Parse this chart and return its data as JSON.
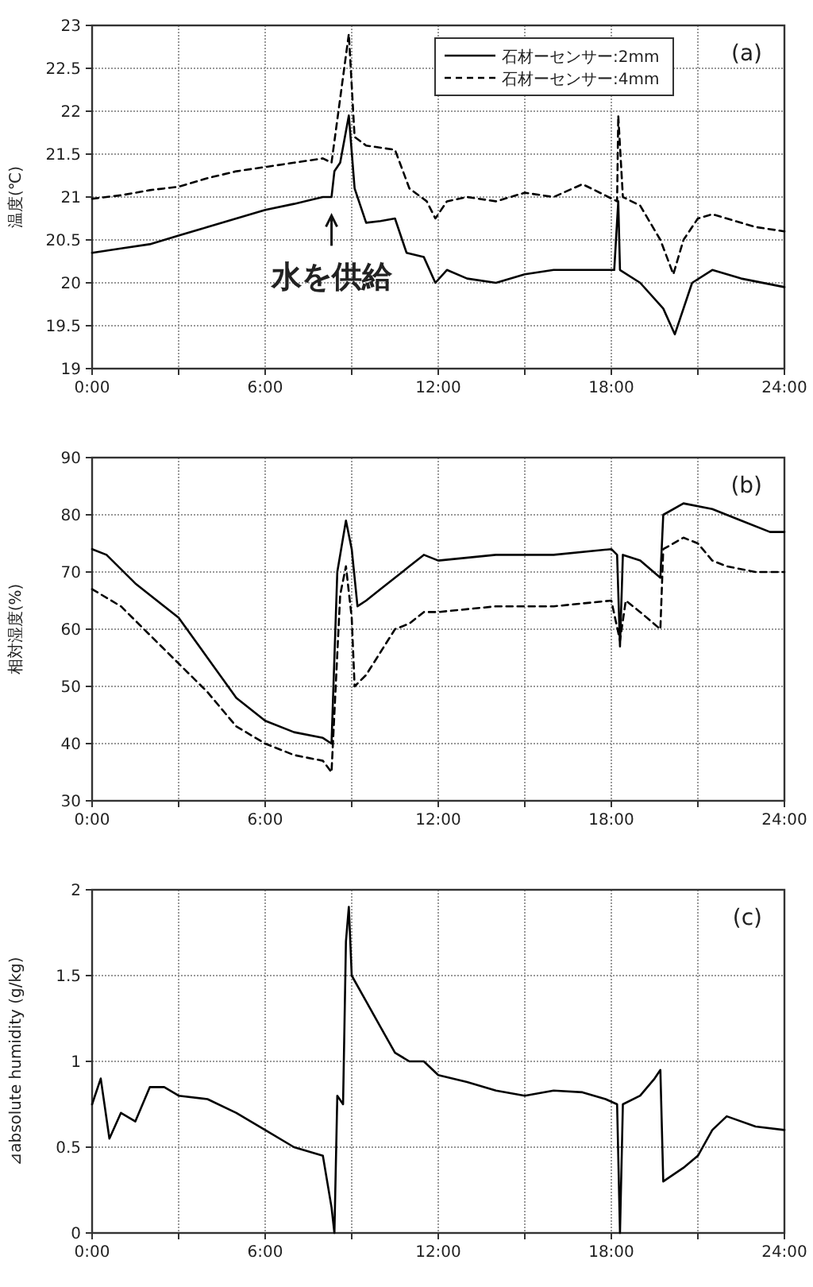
{
  "chart_data": [
    {
      "type": "line",
      "ylabel": "温度(℃)",
      "legend": "top right",
      "grid": true,
      "xlim": [
        0,
        24
      ],
      "xticks": [
        {
          "value": 0,
          "label": "0:00"
        },
        {
          "value": 3,
          "label": null
        },
        {
          "value": 6,
          "label": "6:00"
        },
        {
          "value": 9,
          "label": null
        },
        {
          "value": 12,
          "label": "12:00"
        },
        {
          "value": 15,
          "label": null
        },
        {
          "value": 18,
          "label": "18:00"
        },
        {
          "value": 21,
          "label": null
        },
        {
          "value": 24,
          "label": "24:00"
        }
      ],
      "ylim": [
        19,
        23
      ],
      "yticks": [
        19,
        19.5,
        20,
        20.5,
        21,
        21.5,
        22,
        22.5,
        23
      ],
      "series": [
        {
          "name": "石材ーセンサー:2mm",
          "color": "#000000",
          "line_style": "solid",
          "x": [
            0,
            1,
            2,
            3,
            4,
            5,
            6,
            7,
            8,
            8.3,
            8.4,
            8.6,
            8.9,
            9.1,
            9.5,
            10,
            10.5,
            10.9,
            11.5,
            11.9,
            12.3,
            13,
            14,
            15,
            16,
            17,
            18.1,
            18.24,
            18.3,
            19,
            19.8,
            20.2,
            20.8,
            21.5,
            22.5,
            24
          ],
          "values": [
            20.35,
            20.4,
            20.45,
            20.55,
            20.65,
            20.75,
            20.85,
            20.92,
            21.0,
            21.0,
            21.3,
            21.4,
            21.95,
            21.1,
            20.7,
            20.72,
            20.75,
            20.35,
            20.3,
            20.0,
            20.15,
            20.05,
            20.0,
            20.1,
            20.15,
            20.15,
            20.15,
            20.95,
            20.15,
            20.0,
            19.7,
            19.4,
            20.0,
            20.15,
            20.05,
            19.95
          ]
        },
        {
          "name": "石材ーセンサー:4mm",
          "color": "#000000",
          "line_style": "dashed",
          "x": [
            0,
            1,
            2,
            3,
            4,
            5,
            6,
            7,
            8,
            8.3,
            8.5,
            8.9,
            9.1,
            9.5,
            10.5,
            11,
            11.6,
            11.9,
            12.3,
            13,
            14,
            15,
            16,
            17,
            18.2,
            18.24,
            18.4,
            19,
            19.7,
            20.15,
            20.5,
            21,
            21.5,
            23,
            24
          ],
          "values": [
            20.98,
            21.02,
            21.08,
            21.12,
            21.22,
            21.3,
            21.35,
            21.4,
            21.45,
            21.4,
            21.9,
            22.9,
            21.7,
            21.6,
            21.55,
            21.1,
            20.95,
            20.75,
            20.95,
            21.0,
            20.95,
            21.05,
            21.0,
            21.15,
            20.95,
            21.95,
            21.0,
            20.9,
            20.5,
            20.1,
            20.5,
            20.75,
            20.8,
            20.65,
            20.6
          ]
        }
      ],
      "annotations": [
        "(a)",
        {
          "text": "水を供給",
          "x": 8.3,
          "y": 20.95
        }
      ]
    },
    {
      "type": "line",
      "ylabel": "相対湿度(%)",
      "grid": true,
      "xlim": [
        0,
        24
      ],
      "xticks": [
        {
          "value": 0,
          "label": "0:00"
        },
        {
          "value": 3,
          "label": null
        },
        {
          "value": 6,
          "label": "6:00"
        },
        {
          "value": 9,
          "label": null
        },
        {
          "value": 12,
          "label": "12:00"
        },
        {
          "value": 15,
          "label": null
        },
        {
          "value": 18,
          "label": "18:00"
        },
        {
          "value": 21,
          "label": null
        },
        {
          "value": 24,
          "label": "24:00"
        }
      ],
      "ylim": [
        30,
        90
      ],
      "yticks": [
        30,
        40,
        50,
        60,
        70,
        80,
        90
      ],
      "series": [
        {
          "color": "#000000",
          "line_style": "solid",
          "x": [
            0,
            0.5,
            1.5,
            3,
            4,
            5,
            6,
            7,
            8,
            8.3,
            8.5,
            8.8,
            9.0,
            9.2,
            9.5,
            10,
            11,
            11.5,
            12,
            14,
            16,
            18,
            18.2,
            18.3,
            18.4,
            19,
            19.7,
            19.8,
            20.5,
            21.5,
            22.5,
            23.5,
            24
          ],
          "values": [
            74,
            73,
            68,
            62,
            55,
            48,
            44,
            42,
            41,
            40,
            70,
            79,
            74,
            64,
            65,
            67,
            71,
            73,
            72,
            73,
            73,
            74,
            73,
            57,
            73,
            72,
            69,
            80,
            82,
            81,
            79,
            77,
            77
          ]
        },
        {
          "color": "#000000",
          "line_style": "dashed",
          "x": [
            0,
            1,
            2,
            3,
            4,
            5,
            6,
            7,
            8,
            8.3,
            8.6,
            8.8,
            9.0,
            9.1,
            9.5,
            10,
            10.5,
            11,
            11.5,
            12,
            14,
            16,
            18,
            18.3,
            18.5,
            19,
            19.7,
            19.8,
            20.5,
            21,
            21.5,
            22,
            23,
            24
          ],
          "values": [
            67,
            64,
            59,
            54,
            49,
            43,
            40,
            38,
            37,
            35,
            66,
            71,
            62,
            50,
            52,
            56,
            60,
            61,
            63,
            63,
            64,
            64,
            65,
            58,
            65,
            63,
            60,
            74,
            76,
            75,
            72,
            71,
            70,
            70
          ]
        }
      ],
      "annotations": [
        "(b)"
      ]
    },
    {
      "type": "line",
      "ylabel": "⊿absolute humidity (g/kg)",
      "grid": true,
      "xlim": [
        0,
        24
      ],
      "xticks": [
        {
          "value": 0,
          "label": "0:00"
        },
        {
          "value": 3,
          "label": null
        },
        {
          "value": 6,
          "label": "6:00"
        },
        {
          "value": 9,
          "label": null
        },
        {
          "value": 12,
          "label": "12:00"
        },
        {
          "value": 15,
          "label": null
        },
        {
          "value": 18,
          "label": "18:00"
        },
        {
          "value": 21,
          "label": null
        },
        {
          "value": 24,
          "label": "24:00"
        }
      ],
      "ylim": [
        0,
        2
      ],
      "yticks": [
        0,
        0.5,
        1,
        1.5,
        2
      ],
      "series": [
        {
          "color": "#000000",
          "line_style": "solid",
          "x": [
            0,
            0.3,
            0.6,
            1,
            1.5,
            2,
            2.5,
            3,
            4,
            5,
            6,
            7,
            8,
            8.3,
            8.4,
            8.5,
            8.7,
            8.8,
            8.9,
            9,
            9.5,
            10,
            10.5,
            11,
            11.5,
            12,
            13,
            14,
            15,
            16,
            17,
            17.8,
            18.2,
            18.3,
            18.4,
            19,
            19.5,
            19.7,
            19.8,
            20.5,
            21,
            21.5,
            22,
            23,
            24
          ],
          "values": [
            0.75,
            0.9,
            0.55,
            0.7,
            0.65,
            0.85,
            0.85,
            0.8,
            0.78,
            0.7,
            0.6,
            0.5,
            0.45,
            0.15,
            0.0,
            0.8,
            0.75,
            1.7,
            1.9,
            1.5,
            1.35,
            1.2,
            1.05,
            1.0,
            1.0,
            0.92,
            0.88,
            0.83,
            0.8,
            0.83,
            0.82,
            0.78,
            0.75,
            0.0,
            0.75,
            0.8,
            0.9,
            0.95,
            0.3,
            0.38,
            0.45,
            0.6,
            0.68,
            0.62,
            0.6
          ]
        }
      ],
      "annotations": [
        "(c)"
      ]
    }
  ]
}
